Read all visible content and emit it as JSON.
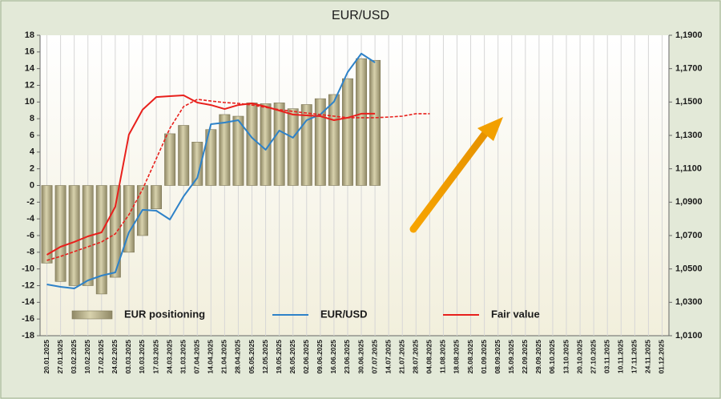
{
  "chart_data": {
    "type": "bar",
    "title": "EUR/USD",
    "categories": [
      "20.01.2025",
      "27.01.2025",
      "03.02.2025",
      "10.02.2025",
      "17.02.2025",
      "24.02.2025",
      "03.03.2025",
      "10.03.2025",
      "17.03.2025",
      "24.03.2025",
      "31.03.2025",
      "07.04.2025",
      "14.04.2025",
      "21.04.2025",
      "28.04.2025",
      "05.05.2025",
      "12.05.2025",
      "19.05.2025",
      "26.05.2025",
      "02.06.2025",
      "09.06.2025",
      "16.06.2025",
      "23.06.2025",
      "30.06.2025",
      "07.07.2025",
      "14.07.2025",
      "21.07.2025",
      "28.07.2025",
      "04.08.2025",
      "11.08.2025",
      "18.08.2025",
      "25.08.2025",
      "01.09.2025",
      "08.09.2025",
      "15.09.2025",
      "22.09.2025",
      "29.09.2025",
      "06.10.2025",
      "13.10.2025",
      "20.10.2025",
      "27.10.2025",
      "03.11.2025",
      "10.11.2025",
      "17.11.2025",
      "24.11.2025",
      "01.12.2025"
    ],
    "series": [
      {
        "name": "EUR positioning",
        "type": "bar",
        "color": "#bab38c",
        "values": [
          -9.3,
          -11.5,
          -12,
          -12,
          -13,
          -11,
          -8,
          -6,
          -2.8,
          6.2,
          7.2,
          5.2,
          6.7,
          8.5,
          8.3,
          9.9,
          9.8,
          9.9,
          9.2,
          9.7,
          10.4,
          10.9,
          12.8,
          15.2,
          15.0,
          null,
          null,
          null,
          null,
          null,
          null,
          null,
          null,
          null,
          null,
          null,
          null,
          null,
          null,
          null,
          null,
          null,
          null,
          null,
          null,
          null
        ]
      },
      {
        "name": "EUR/USD",
        "type": "line",
        "axis": "y2",
        "color": "#2e82c8",
        "values": [
          1.0407,
          1.0393,
          1.0383,
          1.0431,
          1.046,
          1.0479,
          1.0719,
          1.0854,
          1.0849,
          1.0796,
          1.0935,
          1.1046,
          1.1367,
          1.1377,
          1.1391,
          1.1286,
          1.1214,
          1.1329,
          1.1286,
          1.1391,
          1.1425,
          1.1502,
          1.1679,
          1.179,
          1.1737,
          null,
          null,
          null,
          null,
          null,
          null,
          null,
          null,
          null,
          null,
          null,
          null,
          null,
          null,
          null,
          null,
          null,
          null,
          null,
          null,
          null
        ]
      },
      {
        "name": "Fair value",
        "type": "line",
        "axis": "y2",
        "color": "#e8201c",
        "values": [
          1.0585,
          1.0633,
          1.0662,
          1.0695,
          1.0719,
          1.0873,
          1.1305,
          1.1454,
          1.153,
          1.1535,
          1.154,
          1.1497,
          1.1482,
          1.1458,
          1.1482,
          1.1492,
          1.1473,
          1.1449,
          1.1425,
          1.142,
          1.1415,
          1.1391,
          1.1406,
          1.143,
          1.143,
          null,
          null,
          null,
          null,
          null,
          null,
          null,
          null,
          null,
          null,
          null,
          null,
          null,
          null,
          null,
          null,
          null,
          null,
          null,
          null,
          null
        ]
      },
      {
        "type": "line",
        "axis": "y2",
        "color": "#e8201c",
        "style": "dashed",
        "values": [
          1.0551,
          1.0575,
          1.0604,
          1.0633,
          1.0662,
          1.071,
          1.0825,
          1.0978,
          1.1161,
          1.1343,
          1.1473,
          1.1516,
          1.1506,
          1.1497,
          1.1492,
          1.1482,
          1.1468,
          1.1454,
          1.1444,
          1.1434,
          1.1425,
          1.1415,
          1.1406,
          1.1406,
          1.1406,
          1.141,
          1.1415,
          1.143,
          1.143,
          null,
          null,
          null,
          null,
          null,
          null,
          null,
          null,
          null,
          null,
          null,
          null,
          null,
          null,
          null,
          null,
          null
        ]
      }
    ],
    "ylim": [
      -18,
      18
    ],
    "yticks": [
      -18,
      -16,
      -14,
      -12,
      -10,
      -8,
      -6,
      -4,
      -2,
      0,
      2,
      4,
      6,
      8,
      10,
      12,
      14,
      16,
      18
    ],
    "y2lim": [
      1.01,
      1.19
    ],
    "y2ticks": [
      {
        "value": 1.01,
        "label": "1,0100"
      },
      {
        "value": 1.03,
        "label": "1,0300"
      },
      {
        "value": 1.05,
        "label": "1,0500"
      },
      {
        "value": 1.07,
        "label": "1,0700"
      },
      {
        "value": 1.09,
        "label": "1,0900"
      },
      {
        "value": 1.11,
        "label": "1,1100"
      },
      {
        "value": 1.13,
        "label": "1,1300"
      },
      {
        "value": 1.15,
        "label": "1,1500"
      },
      {
        "value": 1.17,
        "label": "1,1700"
      },
      {
        "value": 1.19,
        "label": "1,1900"
      }
    ],
    "grid": true,
    "legend": "bottom"
  }
}
